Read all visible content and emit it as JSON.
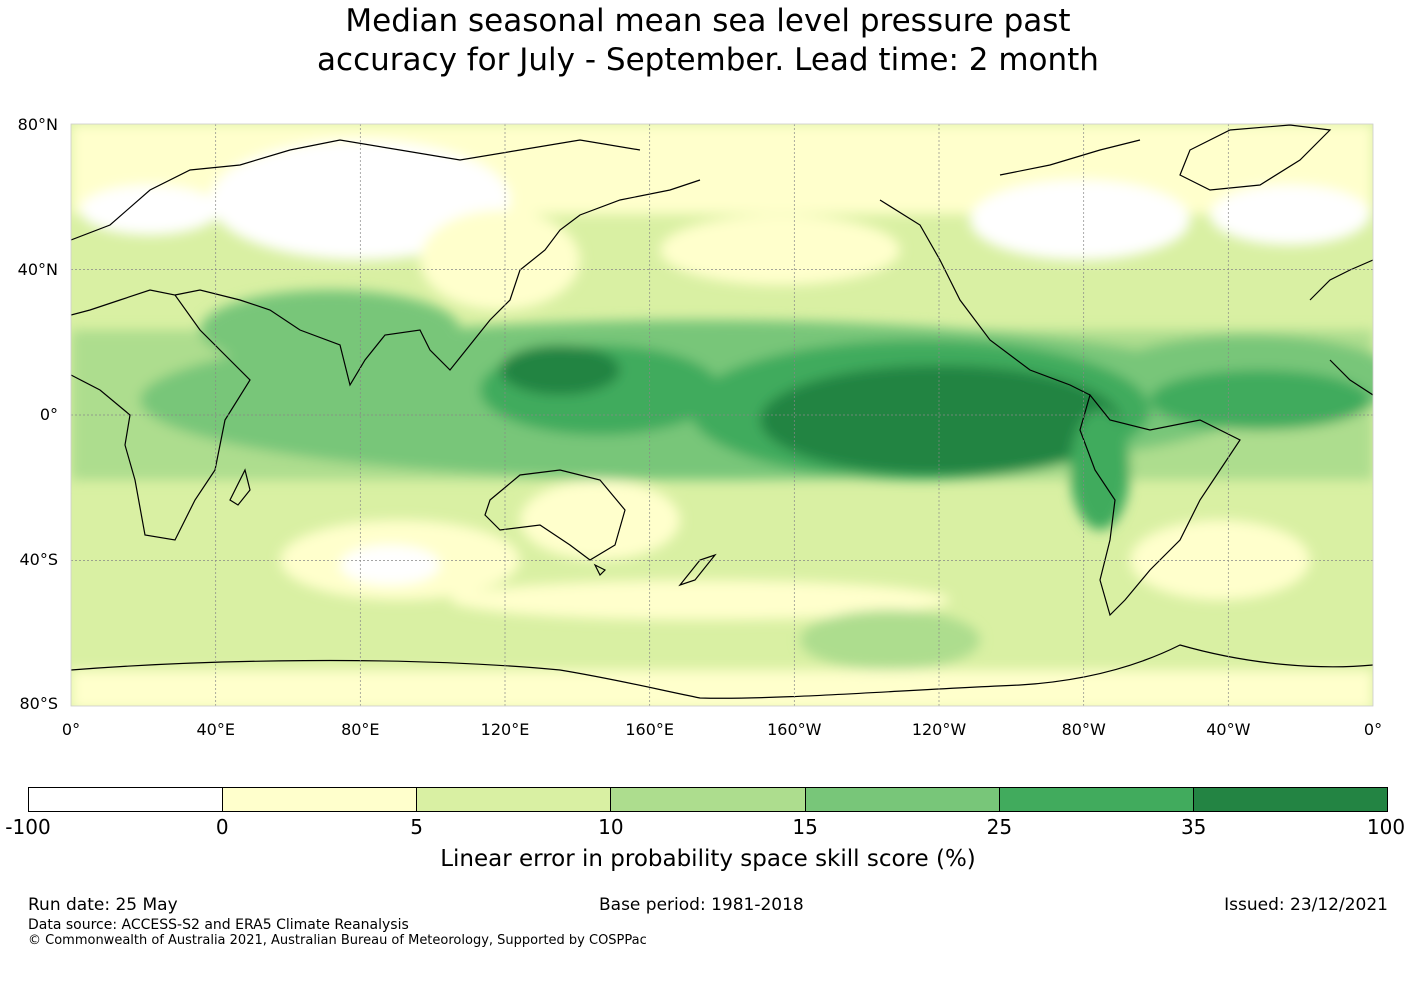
{
  "title_line1": "Median seasonal mean sea level pressure past",
  "title_line2": "accuracy for July - September. Lead time: 2 month",
  "lat_labels": [
    "80°N",
    "40°N",
    "0°",
    "40°S",
    "80°S"
  ],
  "lon_labels": [
    "0°",
    "40°E",
    "80°E",
    "120°E",
    "160°E",
    "160°W",
    "120°W",
    "80°W",
    "40°W",
    "0°"
  ],
  "colorbar": {
    "colors": [
      "#ffffff",
      "#ffffcc",
      "#d9f0a3",
      "#addd8e",
      "#78c679",
      "#41ab5d",
      "#238443"
    ],
    "tick_labels": [
      "-100",
      "0",
      "5",
      "10",
      "15",
      "25",
      "35",
      "100"
    ],
    "label": "Linear error in probability space skill score (%)"
  },
  "footer": {
    "run_date": "Run date: 25 May",
    "base_period": "Base period: 1981-2018",
    "issued": "Issued: 23/12/2021",
    "data_source": "Data source: ACCESS-S2 and ERA5 Climate Reanalysis",
    "copyright": "© Commonwealth of Australia 2021, Australian Bureau of Meteorology, Supported by COSPPac"
  }
}
